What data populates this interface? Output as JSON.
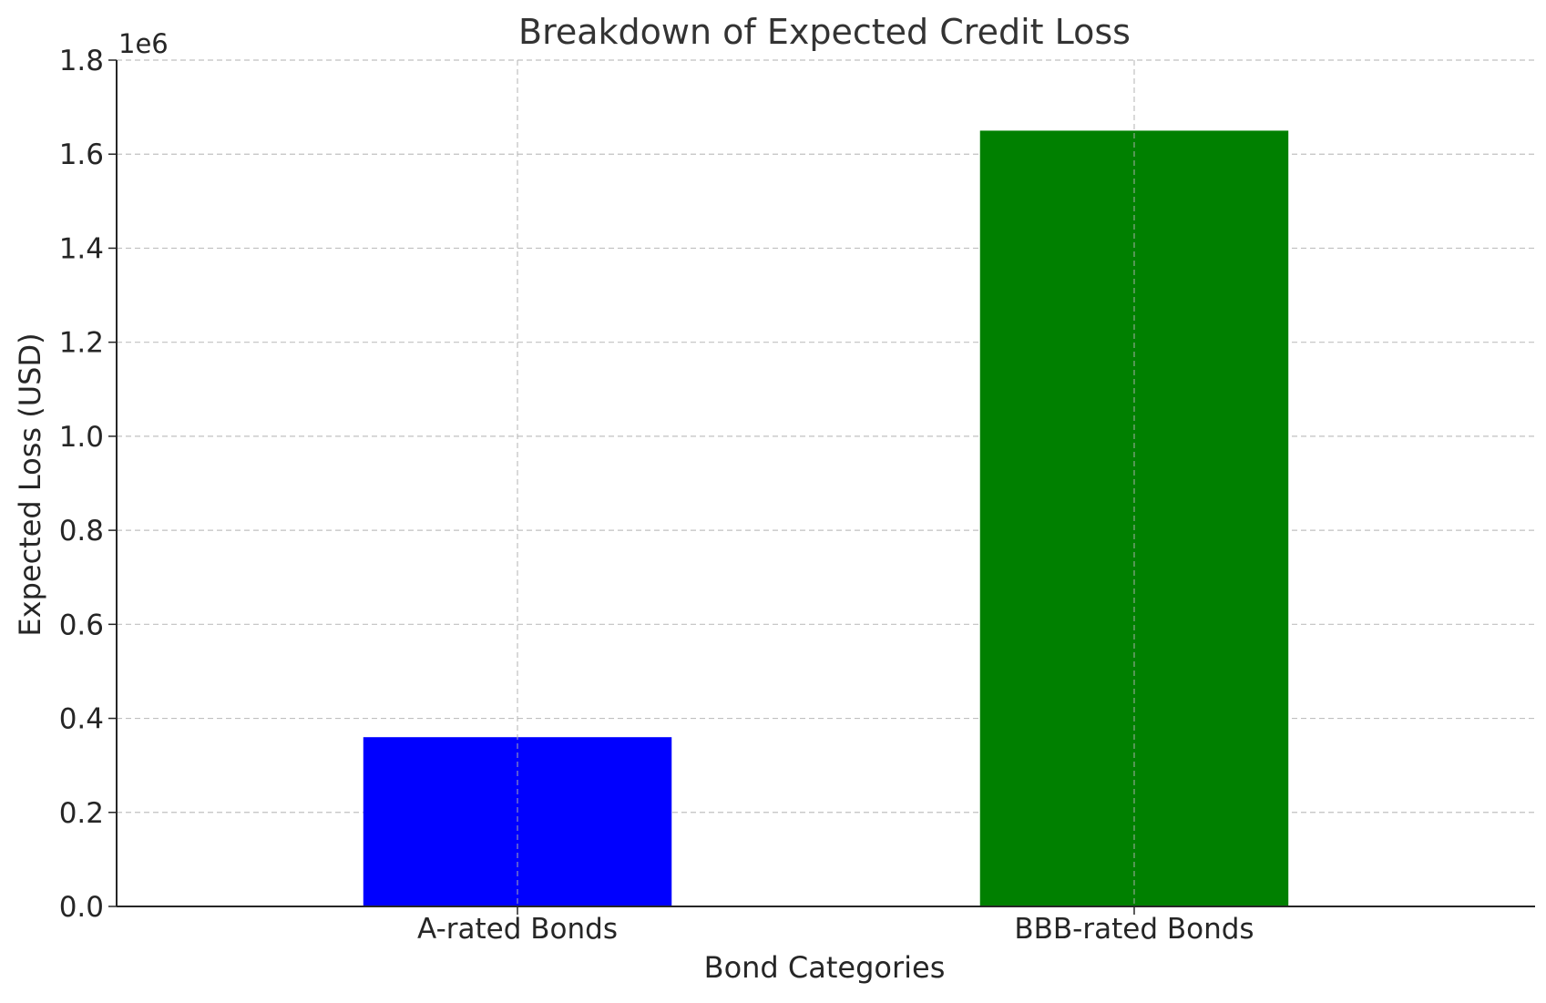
{
  "chart_data": {
    "type": "bar",
    "title": "Breakdown of Expected Credit Loss",
    "xlabel": "Bond Categories",
    "ylabel": "Expected Loss (USD)",
    "y_offset_label": "1e6",
    "categories": [
      "A-rated Bonds",
      "BBB-rated Bonds"
    ],
    "values": [
      360000,
      1650000
    ],
    "bar_colors": [
      "#0000ff",
      "#008000"
    ],
    "ylim": [
      0,
      1800000
    ],
    "yticks": [
      0,
      200000,
      400000,
      600000,
      800000,
      1000000,
      1200000,
      1400000,
      1600000,
      1800000
    ],
    "ytick_labels": [
      "0.0",
      "0.2",
      "0.4",
      "0.6",
      "0.8",
      "1.0",
      "1.2",
      "1.4",
      "1.6",
      "1.8"
    ],
    "grid": true,
    "legend": false
  }
}
